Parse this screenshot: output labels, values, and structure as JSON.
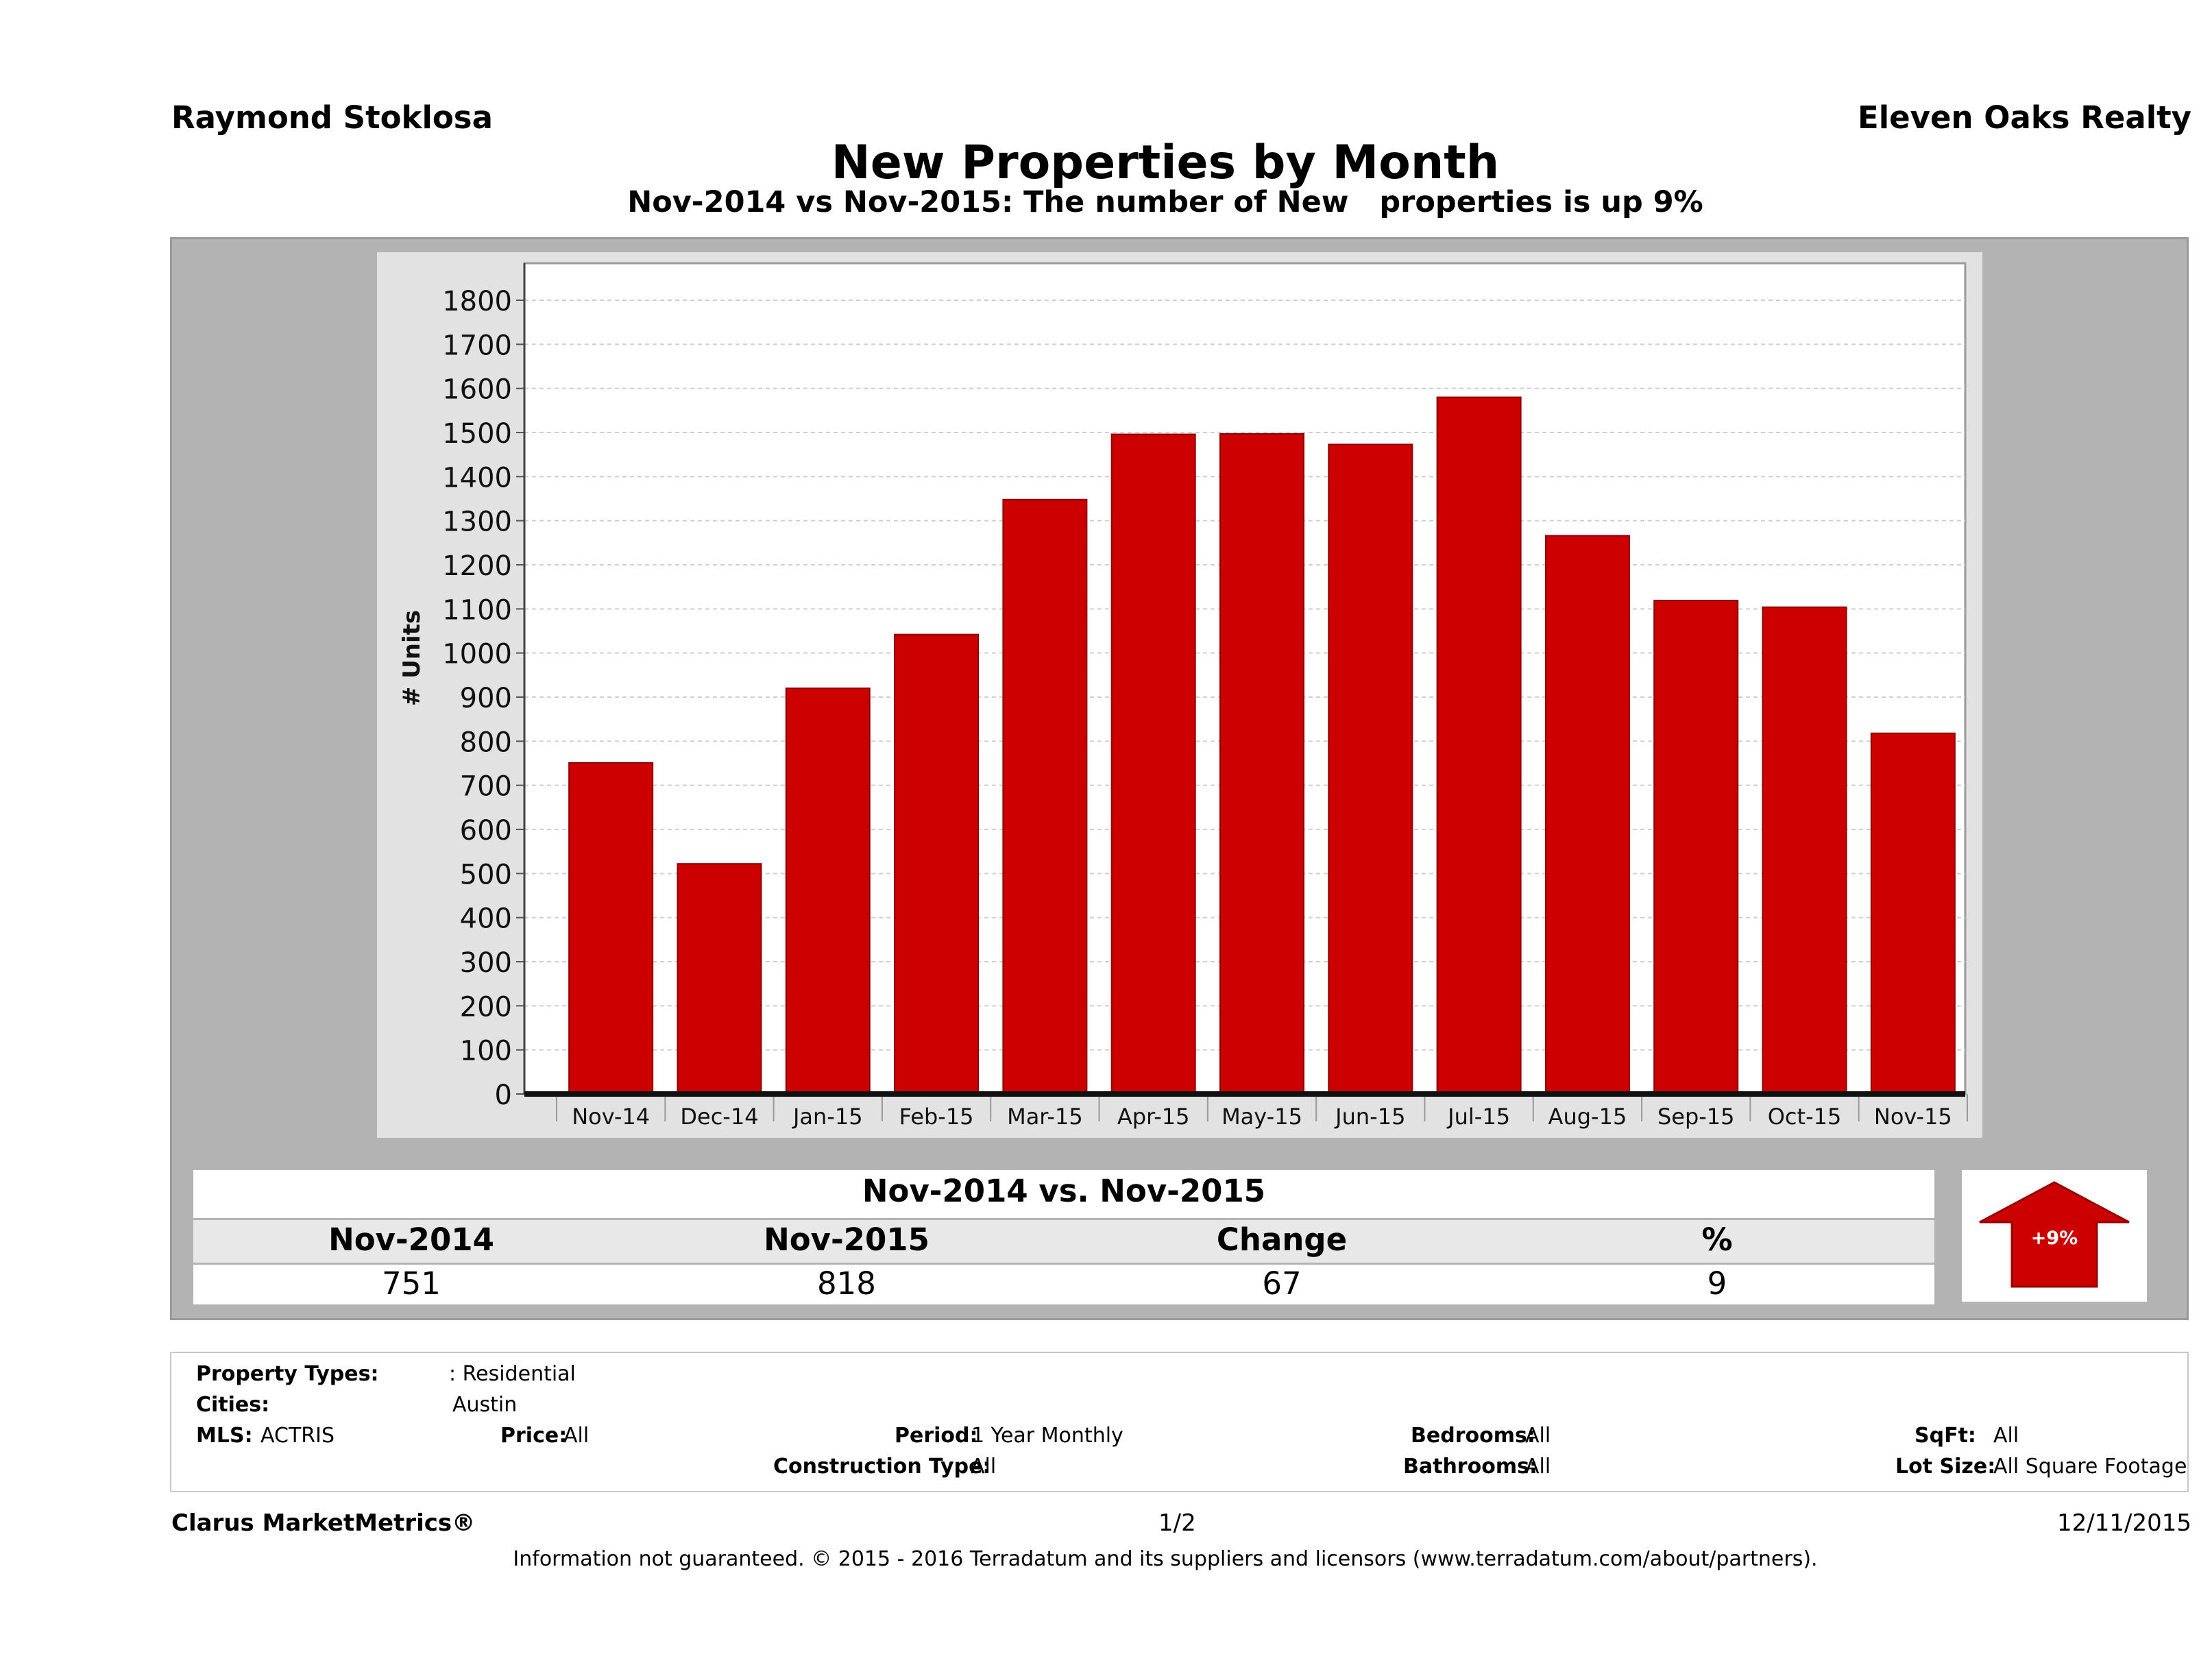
{
  "header": {
    "agent": "Raymond Stoklosa",
    "brokerage": "Eleven Oaks Realty",
    "title": "New Properties by Month",
    "subtitle": "Nov-2014 vs Nov-2015: The number of New   properties is up 9%"
  },
  "chart_data": {
    "type": "bar",
    "categories": [
      "Nov-14",
      "Dec-14",
      "Jan-15",
      "Feb-15",
      "Mar-15",
      "Apr-15",
      "May-15",
      "Jun-15",
      "Jul-15",
      "Aug-15",
      "Sep-15",
      "Oct-15",
      "Nov-15"
    ],
    "values": [
      751,
      522,
      920,
      1042,
      1348,
      1496,
      1497,
      1473,
      1580,
      1266,
      1119,
      1104,
      818
    ],
    "ylabel": "# Units",
    "ylim": [
      0,
      1800
    ],
    "yticks": [
      0,
      100,
      200,
      300,
      400,
      500,
      600,
      700,
      800,
      900,
      1000,
      1100,
      1200,
      1300,
      1400,
      1500,
      1600,
      1700,
      1800
    ],
    "bar_color": "#cc0000",
    "grid": true
  },
  "summary": {
    "title": "Nov-2014 vs. Nov-2015",
    "headers": [
      "Nov-2014",
      "Nov-2015",
      "Change",
      "%"
    ],
    "values": [
      "751",
      "818",
      "67",
      "9"
    ],
    "badge": "+9%",
    "badge_color": "#cc0000"
  },
  "filters": {
    "property_types_label": "Property Types:",
    "property_types_value": ": Residential",
    "cities_label": "Cities:",
    "cities_value": "Austin",
    "mls_label": "MLS:",
    "mls_value": "ACTRIS",
    "price_label": "Price:",
    "price_value": "All",
    "period_label": "Period:",
    "period_value": "1 Year Monthly",
    "bedrooms_label": "Bedrooms:",
    "bedrooms_value": "All",
    "sqft_label": "SqFt:",
    "sqft_value": "All",
    "construction_label": "Construction Type:",
    "construction_value": "All",
    "bathrooms_label": "Bathrooms:",
    "bathrooms_value": "All",
    "lot_label": "Lot Size:",
    "lot_value": "All Square Footage"
  },
  "footer": {
    "brand": "Clarus MarketMetrics®",
    "page": "1/2",
    "date": "12/11/2015",
    "disclaimer": "Information not guaranteed. © 2015 - 2016 Terradatum and its suppliers and licensors (www.terradatum.com/about/partners)."
  }
}
